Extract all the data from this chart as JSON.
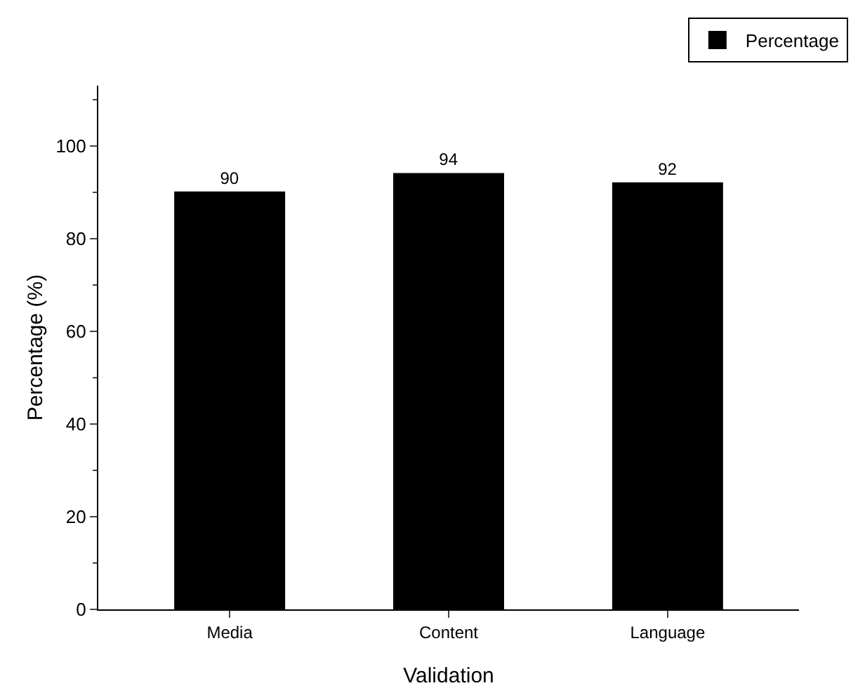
{
  "chart_data": {
    "type": "bar",
    "xlabel": "Validation",
    "ylabel": "Percentage (%)",
    "categories": [
      "Media",
      "Content",
      "Language"
    ],
    "series": [
      {
        "name": "Percentage",
        "color": "#000000",
        "values": [
          90,
          94,
          92
        ]
      }
    ],
    "ylim": [
      0,
      113
    ],
    "yticks": [
      0,
      20,
      40,
      60,
      80,
      100
    ],
    "data_labels": true,
    "grid": false,
    "legend": "top right"
  }
}
